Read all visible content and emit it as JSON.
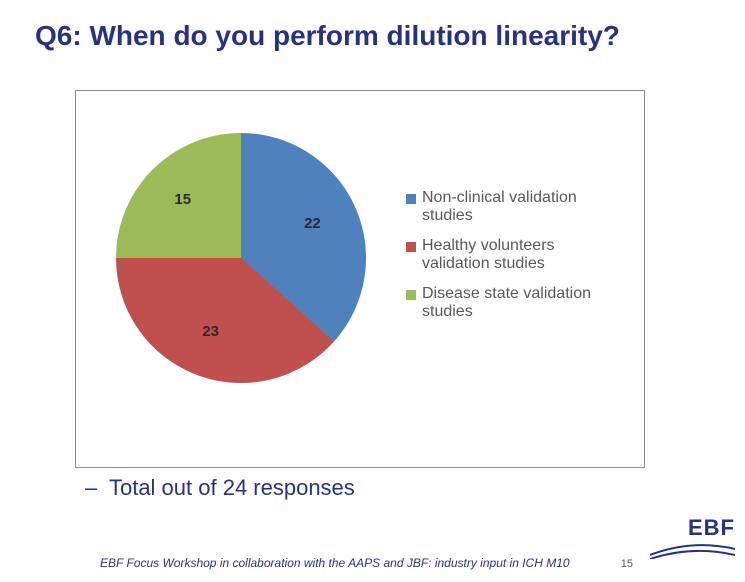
{
  "title": {
    "text": "Q6: When do you perform dilution linearity?",
    "color": "#27337e",
    "fontsize": 28
  },
  "chart": {
    "type": "pie",
    "background_color": "#ffffff",
    "border_color": "#888888",
    "slices": [
      {
        "label": "Non-clinical validation studies",
        "value": 22,
        "color": "#4f81bd"
      },
      {
        "label": "Healthy volunteers validation studies",
        "value": 23,
        "color": "#c0504d"
      },
      {
        "label": "Disease state validation studies",
        "value": 15,
        "color": "#9bbb59"
      }
    ],
    "label_fontsize": 15,
    "label_color": "#2a2a2a",
    "legend_fontsize": 16,
    "legend_color": "#585858"
  },
  "total": {
    "dash": "–",
    "text": "Total out of 24 responses",
    "color": "#27337e",
    "fontsize": 22
  },
  "footer": {
    "text": "EBF Focus Workshop in collaboration with the AAPS and JBF: industry input in ICH M10",
    "color": "#27337e",
    "fontsize": 12
  },
  "page_number": "15",
  "logo": {
    "text": "EBF",
    "color": "#27337e"
  }
}
